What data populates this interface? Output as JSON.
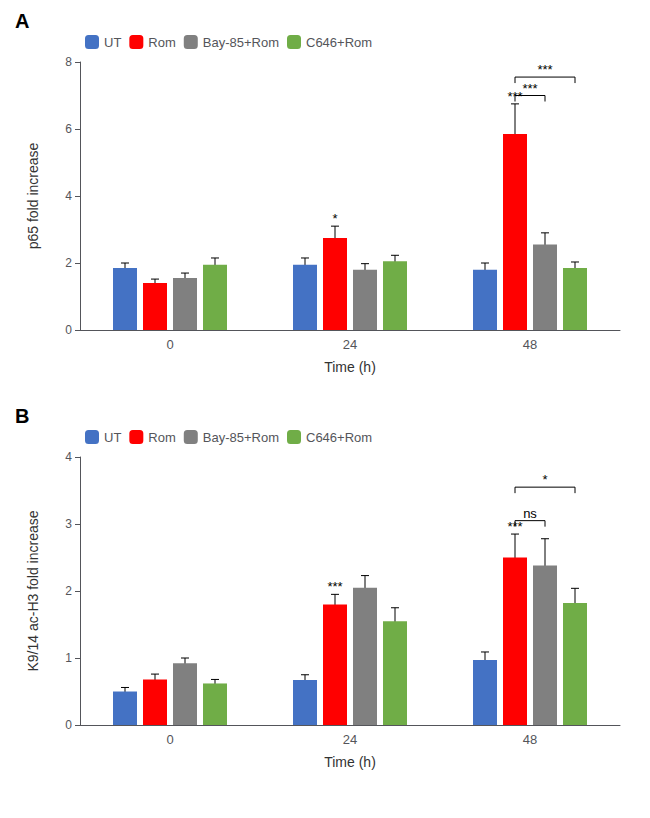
{
  "chart_data": [
    {
      "type": "bar",
      "title": "A",
      "xlabel": "Time (h)",
      "ylabel": "p65 fold increase",
      "categories": [
        "0",
        "24",
        "48"
      ],
      "series": [
        {
          "name": "UT",
          "color": "#4472C4",
          "values": [
            1.85,
            1.95,
            1.8
          ],
          "errors": [
            0.15,
            0.2,
            0.2
          ]
        },
        {
          "name": "Rom",
          "color": "#FF0000",
          "values": [
            1.4,
            2.75,
            5.85
          ],
          "errors": [
            0.12,
            0.35,
            0.9
          ]
        },
        {
          "name": "Bay-85+Rom",
          "color": "#808080",
          "values": [
            1.55,
            1.8,
            2.55
          ],
          "errors": [
            0.15,
            0.18,
            0.35
          ]
        },
        {
          "name": "C646+Rom",
          "color": "#70AD47",
          "values": [
            1.95,
            2.05,
            1.85
          ],
          "errors": [
            0.2,
            0.18,
            0.18
          ]
        }
      ],
      "ylim": [
        0,
        8
      ],
      "yticks": [
        0,
        2,
        4,
        6,
        8
      ],
      "grid": false,
      "legend": "upper left",
      "annotations": [
        {
          "text": "*",
          "category": "24",
          "series": "Rom"
        },
        {
          "text": "***",
          "category": "48",
          "series": "Rom"
        },
        {
          "text": "***",
          "category": "48",
          "from": "Rom",
          "to": "Bay-85+Rom",
          "y": 7.0
        },
        {
          "text": "***",
          "category": "48",
          "from": "Rom",
          "to": "C646+Rom",
          "y": 7.55
        }
      ]
    },
    {
      "type": "bar",
      "title": "B",
      "xlabel": "Time (h)",
      "ylabel": "K9/14 ac-H3 fold increase",
      "categories": [
        "0",
        "24",
        "48"
      ],
      "series": [
        {
          "name": "UT",
          "color": "#4472C4",
          "values": [
            0.5,
            0.67,
            0.97
          ],
          "errors": [
            0.06,
            0.08,
            0.12
          ]
        },
        {
          "name": "Rom",
          "color": "#FF0000",
          "values": [
            0.68,
            1.8,
            2.5
          ],
          "errors": [
            0.08,
            0.15,
            0.35
          ]
        },
        {
          "name": "Bay-85+Rom",
          "color": "#808080",
          "values": [
            0.92,
            2.05,
            2.38
          ],
          "errors": [
            0.08,
            0.18,
            0.4
          ]
        },
        {
          "name": "C646+Rom",
          "color": "#70AD47",
          "values": [
            0.62,
            1.55,
            1.82
          ],
          "errors": [
            0.06,
            0.2,
            0.22
          ]
        }
      ],
      "ylim": [
        0,
        4
      ],
      "yticks": [
        0,
        1,
        2,
        3,
        4
      ],
      "grid": false,
      "legend": "upper left",
      "annotations": [
        {
          "text": "***",
          "category": "24",
          "series": "Rom"
        },
        {
          "text": "***",
          "category": "48",
          "series": "Rom"
        },
        {
          "text": "ns",
          "category": "48",
          "from": "Rom",
          "to": "Bay-85+Rom",
          "y": 3.05
        },
        {
          "text": "*",
          "category": "48",
          "from": "Rom",
          "to": "C646+Rom",
          "y": 3.55
        }
      ]
    }
  ]
}
